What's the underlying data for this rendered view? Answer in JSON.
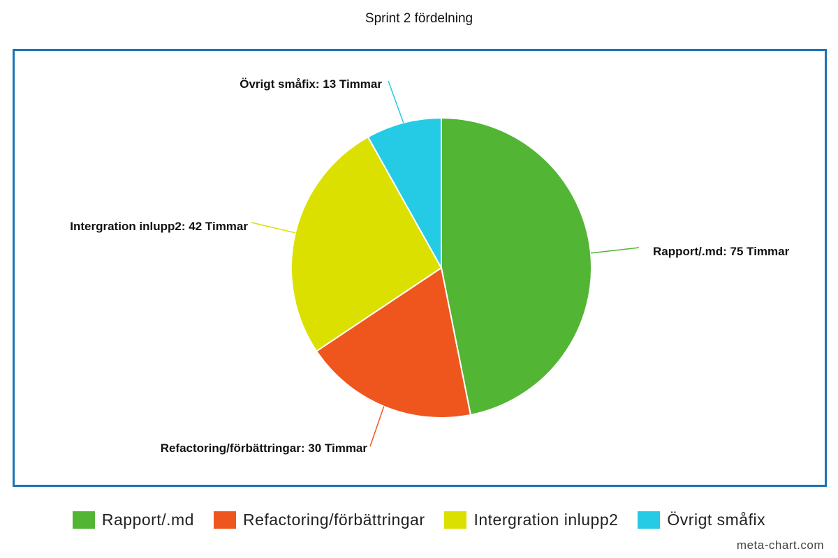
{
  "chart_data": {
    "type": "pie",
    "title": "Sprint 2 fördelning",
    "series": [
      {
        "name": "Rapport/.md",
        "value": 75,
        "label": "Rapport/.md: 75 Timmar",
        "color": "#52b533"
      },
      {
        "name": "Refactoring/förbättringar",
        "value": 30,
        "label": "Refactoring/förbättringar: 30 Timmar",
        "color": "#ef561d"
      },
      {
        "name": "Intergration inlupp2",
        "value": 42,
        "label": "Intergration inlupp2: 42 Timmar",
        "color": "#dce000"
      },
      {
        "name": "Övrigt småfix",
        "value": 13,
        "label": "Övrigt småfix: 13 Timmar",
        "color": "#25cbe5"
      }
    ],
    "legend_position": "bottom",
    "frame_color": "#1a73b8"
  },
  "credit": "meta-chart.com"
}
